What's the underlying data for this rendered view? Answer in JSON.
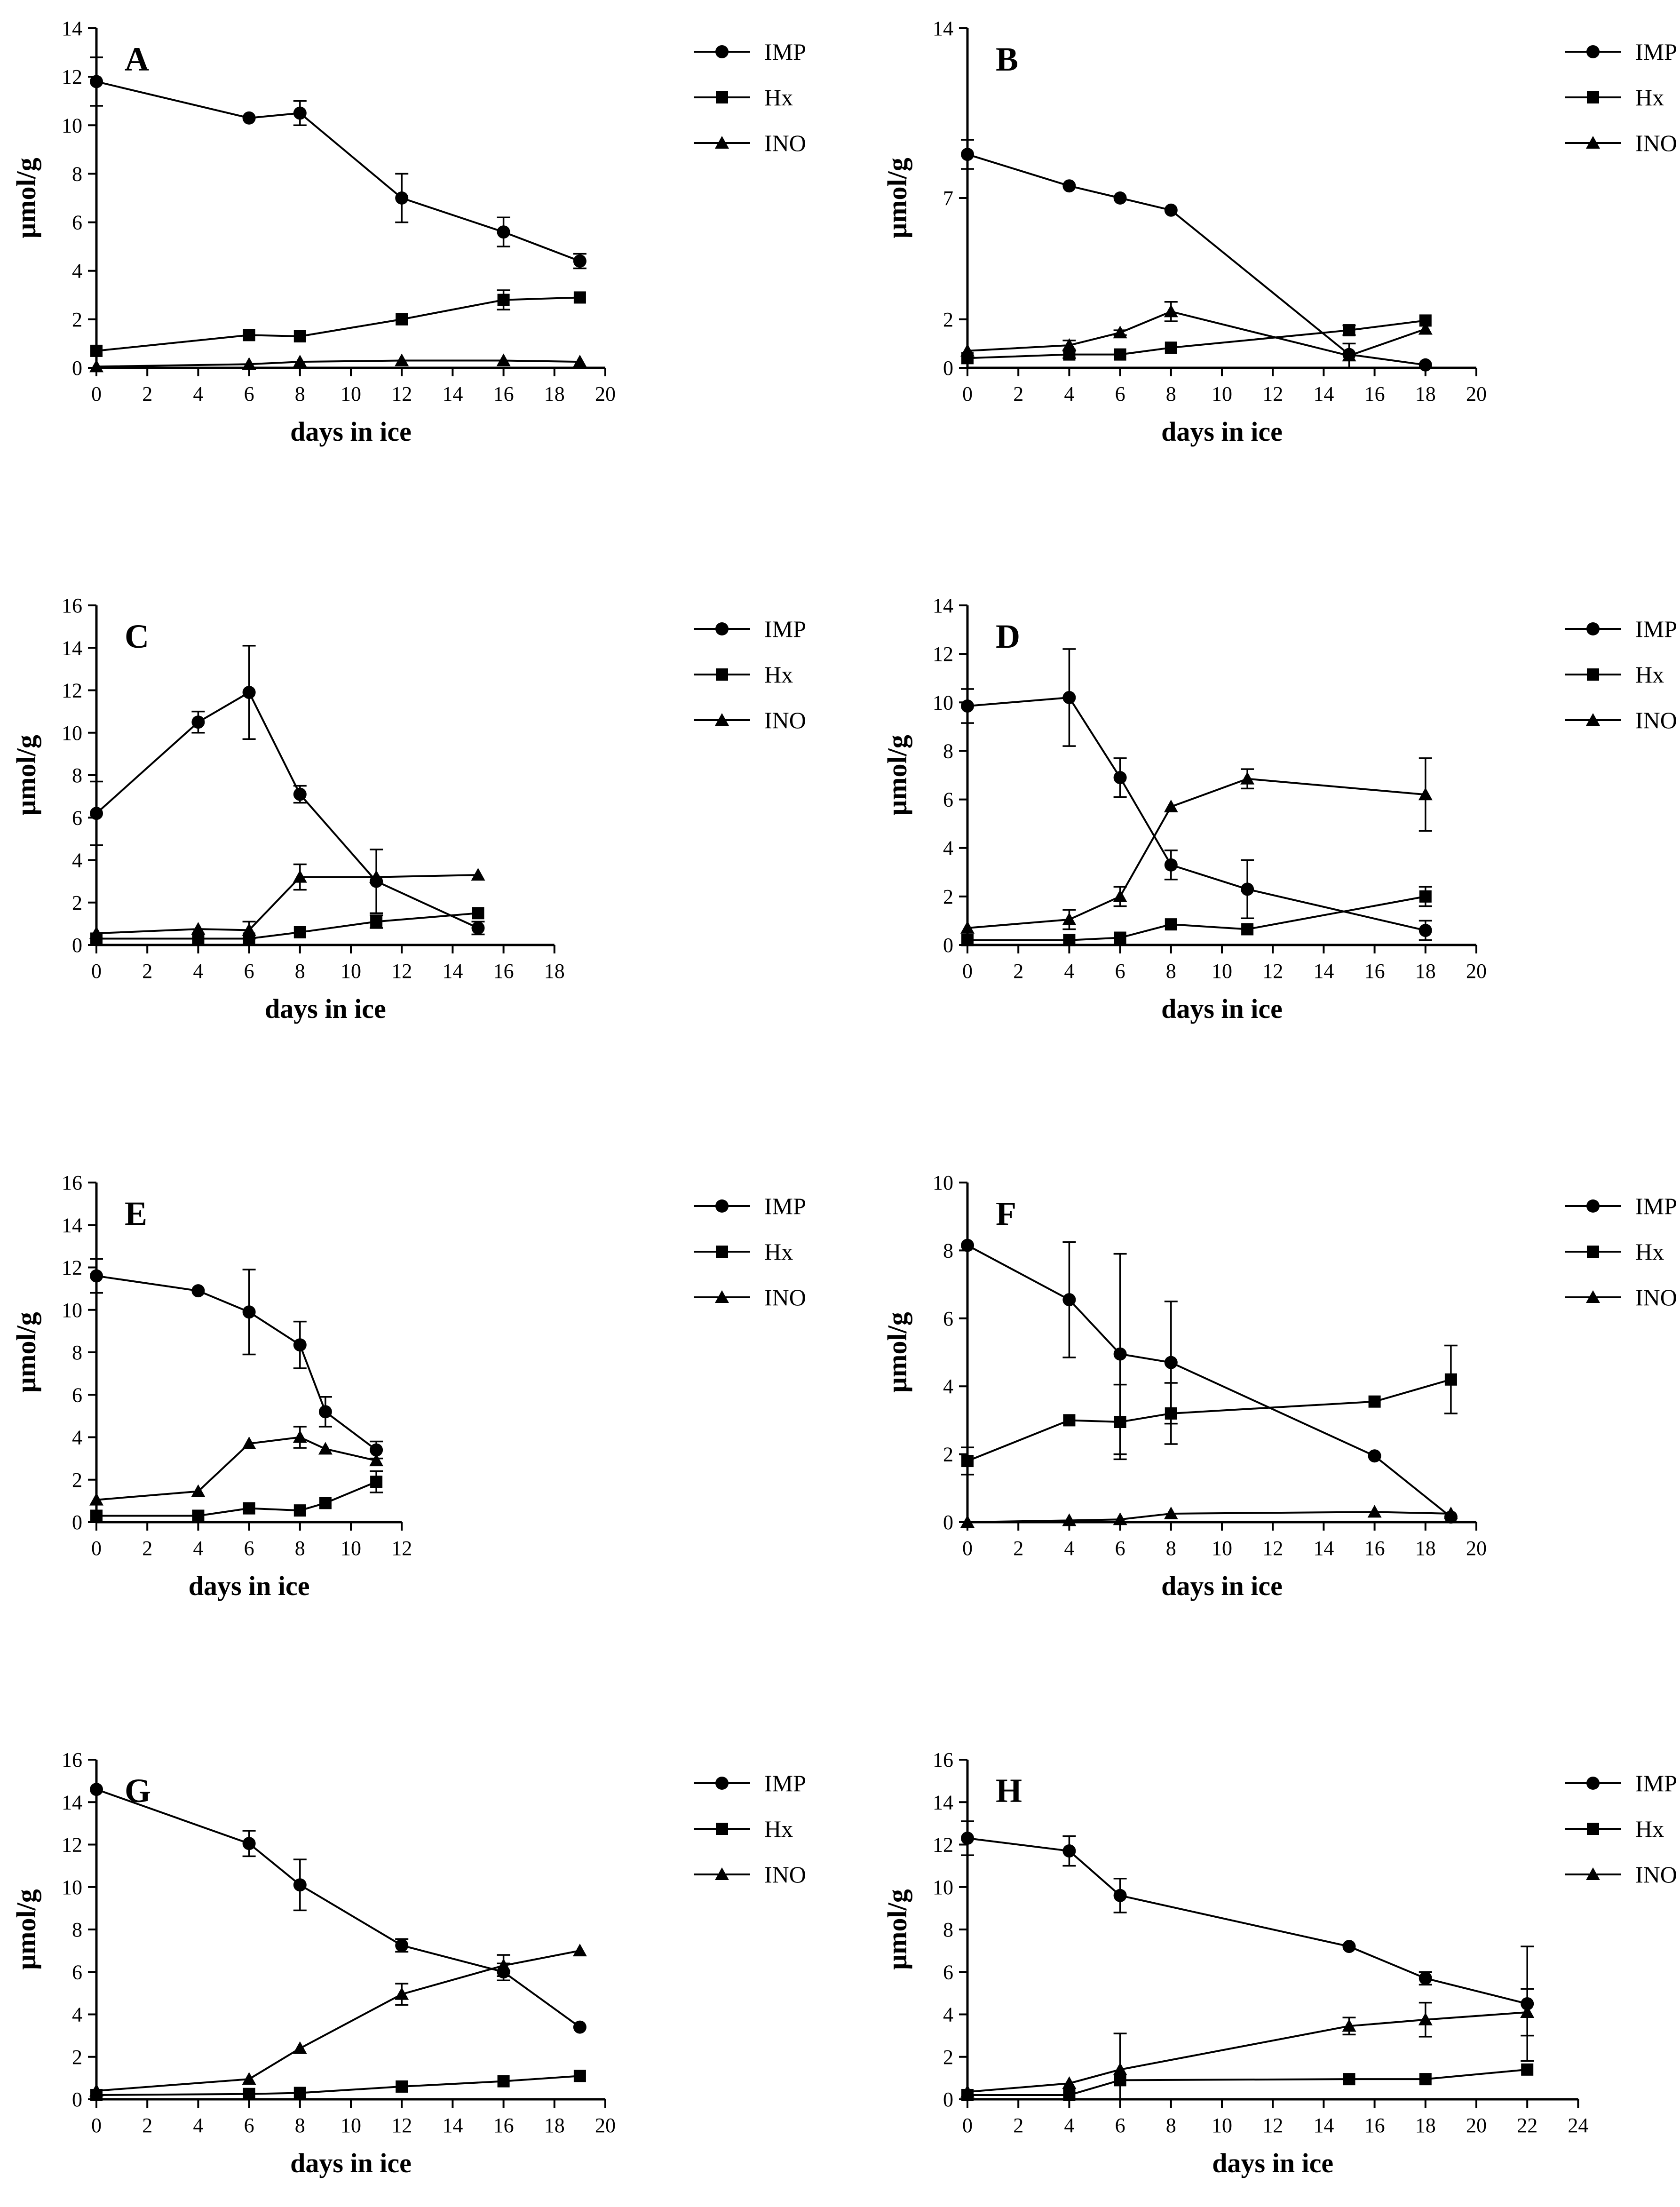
{
  "chart_data": [
    {
      "type": "line",
      "panel": "A",
      "xlabel": "days in ice",
      "ylabel": "μmol/g",
      "xlim": [
        0,
        20
      ],
      "xticks": [
        0,
        2,
        4,
        6,
        8,
        10,
        12,
        14,
        16,
        18,
        20
      ],
      "ylim": [
        0,
        14
      ],
      "yticks": [
        0,
        2,
        4,
        6,
        8,
        10,
        12,
        14
      ],
      "broken_axis": true,
      "series": [
        {
          "name": "IMP",
          "marker": "circle",
          "x": [
            0,
            6,
            8,
            12,
            16,
            19
          ],
          "y": [
            11.8,
            10.3,
            10.5,
            7.0,
            5.6,
            4.4
          ],
          "err": [
            1.0,
            0,
            0.5,
            1.0,
            0.6,
            0.3
          ]
        },
        {
          "name": "Hx",
          "marker": "square",
          "x": [
            0,
            6,
            8,
            12,
            16,
            19
          ],
          "y": [
            0.7,
            1.35,
            1.3,
            2.0,
            2.8,
            2.9
          ],
          "err": [
            0,
            0,
            0,
            0,
            0.4,
            0
          ]
        },
        {
          "name": "INO",
          "marker": "triangle",
          "x": [
            0,
            6,
            8,
            12,
            16,
            19
          ],
          "y": [
            0.05,
            0.15,
            0.25,
            0.3,
            0.3,
            0.25
          ],
          "err": [
            0,
            0,
            0,
            0,
            0,
            0
          ]
        }
      ]
    },
    {
      "type": "line",
      "panel": "B",
      "xlabel": "days in ice",
      "ylabel": "μmol/g",
      "xlim": [
        0,
        20
      ],
      "xticks": [
        0,
        2,
        4,
        6,
        8,
        10,
        12,
        14,
        16,
        18,
        20
      ],
      "ylim": [
        0,
        14
      ],
      "yticks": [
        0,
        2,
        7,
        14
      ],
      "broken_axis": true,
      "series": [
        {
          "name": "IMP",
          "marker": "circle",
          "x": [
            0,
            4,
            6,
            8,
            15,
            18
          ],
          "y": [
            8.8,
            7.5,
            7.0,
            6.5,
            0.55,
            0.12
          ],
          "err": [
            0.6,
            0,
            0,
            0,
            0,
            0
          ]
        },
        {
          "name": "Hx",
          "marker": "square",
          "x": [
            0,
            4,
            6,
            8,
            15,
            18
          ],
          "y": [
            0.4,
            0.55,
            0.55,
            0.83,
            1.55,
            1.95
          ],
          "err": [
            0,
            0.15,
            0,
            0,
            0.2,
            0
          ]
        },
        {
          "name": "INO",
          "marker": "triangle",
          "x": [
            0,
            4,
            6,
            8,
            15,
            18
          ],
          "y": [
            0.7,
            0.93,
            1.45,
            2.32,
            0.5,
            1.6
          ],
          "err": [
            0,
            0.2,
            0.1,
            0.4,
            0.5,
            0
          ]
        }
      ]
    },
    {
      "type": "line",
      "panel": "C",
      "xlabel": "days in ice",
      "ylabel": "μmol/g",
      "xlim": [
        0,
        18
      ],
      "xticks": [
        0,
        2,
        4,
        6,
        8,
        10,
        12,
        14,
        16,
        18
      ],
      "ylim": [
        0,
        16
      ],
      "yticks": [
        0,
        2,
        4,
        6,
        8,
        10,
        12,
        14,
        16
      ],
      "series": [
        {
          "name": "IMP",
          "marker": "circle",
          "x": [
            0,
            4,
            6,
            8,
            11,
            15
          ],
          "y": [
            6.2,
            10.5,
            11.9,
            7.1,
            3.0,
            0.8
          ],
          "err": [
            1.5,
            0.5,
            2.2,
            0.4,
            1.5,
            0.3
          ]
        },
        {
          "name": "Hx",
          "marker": "square",
          "x": [
            0,
            4,
            6,
            8,
            11,
            15
          ],
          "y": [
            0.3,
            0.3,
            0.3,
            0.6,
            1.1,
            1.5
          ],
          "err": [
            0,
            0,
            0,
            0,
            0.3,
            0
          ]
        },
        {
          "name": "INO",
          "marker": "triangle",
          "x": [
            0,
            4,
            6,
            8,
            11,
            15
          ],
          "y": [
            0.55,
            0.75,
            0.7,
            3.2,
            3.2,
            3.3
          ],
          "err": [
            0,
            0,
            0.4,
            0.6,
            0,
            0
          ]
        }
      ]
    },
    {
      "type": "line",
      "panel": "D",
      "xlabel": "days in ice",
      "ylabel": "μmol/g",
      "xlim": [
        0,
        20
      ],
      "xticks": [
        0,
        2,
        4,
        6,
        8,
        10,
        12,
        14,
        16,
        18,
        20
      ],
      "ylim": [
        0,
        14
      ],
      "yticks": [
        0,
        2,
        4,
        6,
        8,
        10,
        12,
        14
      ],
      "series": [
        {
          "name": "IMP",
          "marker": "circle",
          "x": [
            0,
            4,
            6,
            8,
            11,
            18
          ],
          "y": [
            9.85,
            10.2,
            6.9,
            3.3,
            2.3,
            0.6
          ],
          "err": [
            0.7,
            2.0,
            0.8,
            0.6,
            1.2,
            0.4
          ]
        },
        {
          "name": "Hx",
          "marker": "square",
          "x": [
            0,
            4,
            6,
            8,
            11,
            18
          ],
          "y": [
            0.2,
            0.2,
            0.3,
            0.85,
            0.65,
            2.0
          ],
          "err": [
            0,
            0,
            0,
            0,
            0,
            0.4
          ]
        },
        {
          "name": "INO",
          "marker": "triangle",
          "x": [
            0,
            4,
            6,
            8,
            11,
            18
          ],
          "y": [
            0.7,
            1.05,
            2.0,
            5.7,
            6.85,
            6.2
          ],
          "err": [
            0,
            0.4,
            0.4,
            0,
            0.4,
            1.5
          ]
        }
      ]
    },
    {
      "type": "line",
      "panel": "E",
      "xlabel": "days in ice",
      "ylabel": "μmol/g",
      "xlim": [
        0,
        12
      ],
      "xticks": [
        0,
        2,
        4,
        6,
        8,
        10,
        12
      ],
      "ylim": [
        0,
        16
      ],
      "yticks": [
        0,
        2,
        4,
        6,
        8,
        10,
        12,
        14,
        16
      ],
      "series": [
        {
          "name": "IMP",
          "marker": "circle",
          "x": [
            0,
            4,
            6,
            8,
            9,
            11
          ],
          "y": [
            11.6,
            10.9,
            9.9,
            8.35,
            5.2,
            3.4
          ],
          "err": [
            0.8,
            0,
            2.0,
            1.1,
            0.7,
            0.4
          ]
        },
        {
          "name": "Hx",
          "marker": "square",
          "x": [
            0,
            4,
            6,
            8,
            9,
            11
          ],
          "y": [
            0.3,
            0.3,
            0.65,
            0.55,
            0.9,
            1.9
          ],
          "err": [
            0,
            0,
            0,
            0,
            0,
            0.5
          ]
        },
        {
          "name": "INO",
          "marker": "triangle",
          "x": [
            0,
            4,
            6,
            8,
            9,
            11
          ],
          "y": [
            1.05,
            1.45,
            3.7,
            4.0,
            3.45,
            2.9
          ],
          "err": [
            0,
            0,
            0,
            0.5,
            0,
            0
          ]
        }
      ]
    },
    {
      "type": "line",
      "panel": "F",
      "xlabel": "days in ice",
      "ylabel": "μmol/g",
      "xlim": [
        0,
        20
      ],
      "xticks": [
        0,
        2,
        4,
        6,
        8,
        10,
        12,
        14,
        16,
        18,
        20
      ],
      "ylim": [
        0,
        10
      ],
      "yticks": [
        0,
        2,
        4,
        6,
        8,
        10
      ],
      "series": [
        {
          "name": "IMP",
          "marker": "circle",
          "x": [
            0,
            4,
            6,
            8,
            16,
            19
          ],
          "y": [
            8.15,
            6.55,
            4.95,
            4.7,
            1.95,
            0.15
          ],
          "err": [
            0,
            1.7,
            2.95,
            1.8,
            0,
            0
          ]
        },
        {
          "name": "Hx",
          "marker": "square",
          "x": [
            0,
            4,
            6,
            8,
            16,
            19
          ],
          "y": [
            1.8,
            3.0,
            2.95,
            3.2,
            3.55,
            4.2
          ],
          "err": [
            0.4,
            0,
            1.1,
            0.9,
            0,
            1.0
          ]
        },
        {
          "name": "INO",
          "marker": "triangle",
          "x": [
            0,
            4,
            6,
            8,
            16,
            19
          ],
          "y": [
            0,
            0.05,
            0.08,
            0.25,
            0.3,
            0.25
          ],
          "err": [
            0,
            0,
            0,
            0,
            0,
            0
          ]
        }
      ]
    },
    {
      "type": "line",
      "panel": "G",
      "xlabel": "days in ice",
      "ylabel": "μmol/g",
      "xlim": [
        0,
        20
      ],
      "xticks": [
        0,
        2,
        4,
        6,
        8,
        10,
        12,
        14,
        16,
        18,
        20
      ],
      "ylim": [
        0,
        16
      ],
      "yticks": [
        0,
        2,
        4,
        6,
        8,
        10,
        12,
        14,
        16
      ],
      "series": [
        {
          "name": "IMP",
          "marker": "circle",
          "x": [
            0,
            6,
            8,
            12,
            16,
            19
          ],
          "y": [
            14.6,
            12.05,
            10.1,
            7.25,
            6.0,
            3.4
          ],
          "err": [
            0,
            0.6,
            1.2,
            0.3,
            0.4,
            0
          ]
        },
        {
          "name": "Hx",
          "marker": "square",
          "x": [
            0,
            6,
            8,
            12,
            16,
            19
          ],
          "y": [
            0.2,
            0.25,
            0.3,
            0.6,
            0.85,
            1.1
          ],
          "err": [
            0,
            0,
            0,
            0,
            0,
            0
          ]
        },
        {
          "name": "INO",
          "marker": "triangle",
          "x": [
            0,
            6,
            8,
            12,
            16,
            19
          ],
          "y": [
            0.4,
            0.95,
            2.4,
            4.95,
            6.3,
            7.0
          ],
          "err": [
            0,
            0,
            0,
            0.5,
            0.5,
            0
          ]
        }
      ]
    },
    {
      "type": "line",
      "panel": "H",
      "xlabel": "days in ice",
      "ylabel": "μmol/g",
      "xlim": [
        0,
        24
      ],
      "xticks": [
        0,
        2,
        4,
        6,
        8,
        10,
        12,
        14,
        16,
        18,
        20,
        22,
        24
      ],
      "ylim": [
        0,
        16
      ],
      "yticks": [
        0,
        2,
        4,
        6,
        8,
        10,
        12,
        14,
        16
      ],
      "series": [
        {
          "name": "IMP",
          "marker": "circle",
          "x": [
            0,
            4,
            6,
            15,
            18,
            22
          ],
          "y": [
            12.3,
            11.7,
            9.6,
            7.2,
            5.7,
            4.5
          ],
          "err": [
            0.8,
            0.7,
            0.8,
            0,
            0.3,
            2.7
          ]
        },
        {
          "name": "Hx",
          "marker": "square",
          "x": [
            0,
            4,
            6,
            15,
            18,
            22
          ],
          "y": [
            0.2,
            0.2,
            0.9,
            0.95,
            0.95,
            1.4
          ],
          "err": [
            0,
            0,
            0,
            0,
            0,
            0
          ]
        },
        {
          "name": "INO",
          "marker": "triangle",
          "x": [
            0,
            4,
            6,
            15,
            18,
            22
          ],
          "y": [
            0.35,
            0.75,
            1.4,
            3.45,
            3.75,
            4.1
          ],
          "err": [
            0,
            0,
            1.7,
            0.4,
            0.8,
            1.1
          ]
        }
      ]
    }
  ]
}
